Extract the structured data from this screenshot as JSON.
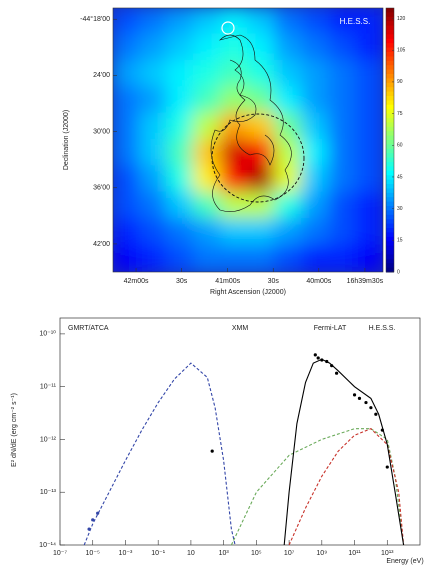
{
  "chart_data": [
    {
      "type": "heatmap",
      "label": "H.E.S.S.",
      "xlabel": "Right Ascension (J2000)",
      "ylabel": "Declination (J2000)",
      "xlim": [
        16.7042,
        16.655
      ],
      "ylim": [
        -44.75,
        -44.28
      ],
      "xticks": [
        {
          "value": 16.7,
          "label": "42m00s"
        },
        {
          "value": 16.6917,
          "label": "30s"
        },
        {
          "value": 16.6833,
          "label": "41m00s"
        },
        {
          "value": 16.675,
          "label": "30s"
        },
        {
          "value": 16.6667,
          "label": "40m00s"
        },
        {
          "value": 16.6583,
          "label": "16h39m30s"
        }
      ],
      "yticks": [
        {
          "value": -44.3,
          "label": "-44°18'00"
        },
        {
          "value": -44.4,
          "label": "24'00"
        },
        {
          "value": -44.5,
          "label": "30'00"
        },
        {
          "value": -44.6,
          "label": "36'00"
        },
        {
          "value": -44.7,
          "label": "42'00"
        }
      ],
      "zlim": [
        0,
        125
      ],
      "zticks": [
        0,
        15,
        30,
        45,
        60,
        75,
        90,
        105,
        120
      ],
      "z": [
        [
          25,
          30,
          35,
          40,
          45,
          40,
          30,
          25,
          20,
          20
        ],
        [
          30,
          35,
          40,
          45,
          50,
          45,
          35,
          30,
          25,
          20
        ],
        [
          35,
          40,
          45,
          50,
          55,
          50,
          40,
          35,
          30,
          25
        ],
        [
          30,
          35,
          45,
          55,
          65,
          60,
          45,
          35,
          30,
          25
        ],
        [
          30,
          40,
          50,
          70,
          90,
          85,
          60,
          40,
          30,
          25
        ],
        [
          30,
          40,
          55,
          85,
          115,
          110,
          70,
          45,
          30,
          25
        ],
        [
          25,
          35,
          50,
          80,
          110,
          120,
          75,
          40,
          30,
          25
        ],
        [
          25,
          30,
          40,
          55,
          70,
          70,
          50,
          35,
          25,
          20
        ],
        [
          20,
          25,
          30,
          35,
          40,
          40,
          35,
          30,
          25,
          20
        ],
        [
          15,
          20,
          25,
          30,
          30,
          30,
          25,
          20,
          20,
          15
        ]
      ]
    },
    {
      "type": "line",
      "xlabel": "Energy (eV)",
      "ylabel": "E² dN/dE (erg cm⁻² s⁻¹)",
      "xscale": "log",
      "yscale": "log",
      "annotations": [
        "GMRT/ATCA",
        "XMM",
        "Fermi-LAT",
        "H.E.S.S."
      ],
      "xlim": [
        1e-07,
        1000000000000000.0
      ],
      "ylim": [
        1e-14,
        2e-10
      ],
      "xticks": [
        {
          "value": 1e-07,
          "label": "10⁻⁷"
        },
        {
          "value": 1e-05,
          "label": "10⁻⁵"
        },
        {
          "value": 0.001,
          "label": "10⁻³"
        },
        {
          "value": 0.1,
          "label": "10⁻¹"
        },
        10,
        {
          "value": 1000,
          "label": "10³"
        },
        {
          "value": 100000,
          "label": "10⁵"
        },
        {
          "value": 10000000.0,
          "label": "10⁷"
        },
        {
          "value": 1000000000.0,
          "label": "10⁹"
        },
        {
          "value": 100000000000.0,
          "label": "10¹¹"
        },
        {
          "value": 10000000000000.0,
          "label": "10¹³"
        }
      ],
      "yticks": [
        {
          "value": 1e-14,
          "label": "10⁻¹⁴"
        },
        {
          "value": 1e-13,
          "label": "10⁻¹³"
        },
        {
          "value": 1e-12,
          "label": "10⁻¹²"
        },
        {
          "value": 1e-11,
          "label": "10⁻¹¹"
        },
        {
          "value": 1e-10,
          "label": "10⁻¹⁰"
        }
      ],
      "series": [
        {
          "color": "#3346a8",
          "dash": "3,2",
          "x": [
            3e-06,
            1e-05,
            0.0001,
            0.001,
            0.01,
            0.1,
            1,
            10,
            100,
            300,
            1000,
            3000,
            5000
          ],
          "values": [
            1e-14,
            2.5e-14,
            1e-13,
            4e-13,
            1.5e-12,
            5e-12,
            1.4e-11,
            2.8e-11,
            1.5e-11,
            4e-12,
            4e-13,
            2e-14,
            1e-14
          ]
        },
        {
          "color": "#6aaa5a",
          "dash": "3,2",
          "x": [
            3000,
            100000.0,
            10000000.0,
            1000000000.0,
            100000000000.0,
            1000000000000.0,
            10000000000000.0,
            30000000000000.0,
            100000000000000.0
          ],
          "values": [
            1e-14,
            1e-13,
            5e-13,
            1e-12,
            1.6e-12,
            1.6e-12,
            1e-12,
            2e-13,
            1e-14
          ]
        },
        {
          "color": "#c8322a",
          "dash": "3,2",
          "x": [
            10000000.0,
            100000000.0,
            1000000000.0,
            10000000000.0,
            100000000000.0,
            1000000000000.0,
            10000000000000.0,
            50000000000000.0,
            100000000000000.0
          ],
          "values": [
            1e-14,
            5e-14,
            2e-13,
            6e-13,
            1.2e-12,
            1.6e-12,
            8e-13,
            1e-13,
            1e-14
          ]
        },
        {
          "color": "#000000",
          "dash": "none",
          "x": [
            5000000.0,
            10000000.0,
            30000000.0,
            100000000.0,
            300000000.0,
            1000000000.0,
            3000000000.0,
            10000000000.0,
            100000000000.0,
            1000000000000.0,
            3000000000000.0,
            10000000000000.0,
            30000000000000.0,
            100000000000000.0
          ],
          "values": [
            1e-14,
            1e-13,
            2e-12,
            1.2e-11,
            2.8e-11,
            3.3e-11,
            2.8e-11,
            2e-11,
            1e-11,
            6e-12,
            3e-12,
            8e-13,
            1e-13,
            1e-14
          ]
        }
      ],
      "points": [
        {
          "color": "#3346a8",
          "x": [
            6e-06,
            1e-05,
            2e-05
          ],
          "values": [
            2e-14,
            3e-14,
            4e-14
          ]
        },
        {
          "color": "#000000",
          "x": [
            200
          ],
          "values": [
            6e-13
          ]
        },
        {
          "color": "#000000",
          "x": [
            400000000.0,
            600000000.0,
            1000000000.0,
            2000000000.0,
            4000000000.0,
            8000000000.0
          ],
          "values": [
            4e-11,
            3.5e-11,
            3.2e-11,
            3e-11,
            2.5e-11,
            1.8e-11
          ]
        },
        {
          "color": "#000000",
          "x": [
            100000000000.0,
            200000000000.0,
            500000000000.0,
            1000000000000.0,
            2000000000000.0,
            5000000000000.0,
            10000000000000.0
          ],
          "values": [
            7e-12,
            6e-12,
            5e-12,
            4e-12,
            3e-12,
            1.5e-12,
            3e-13
          ]
        }
      ]
    }
  ]
}
